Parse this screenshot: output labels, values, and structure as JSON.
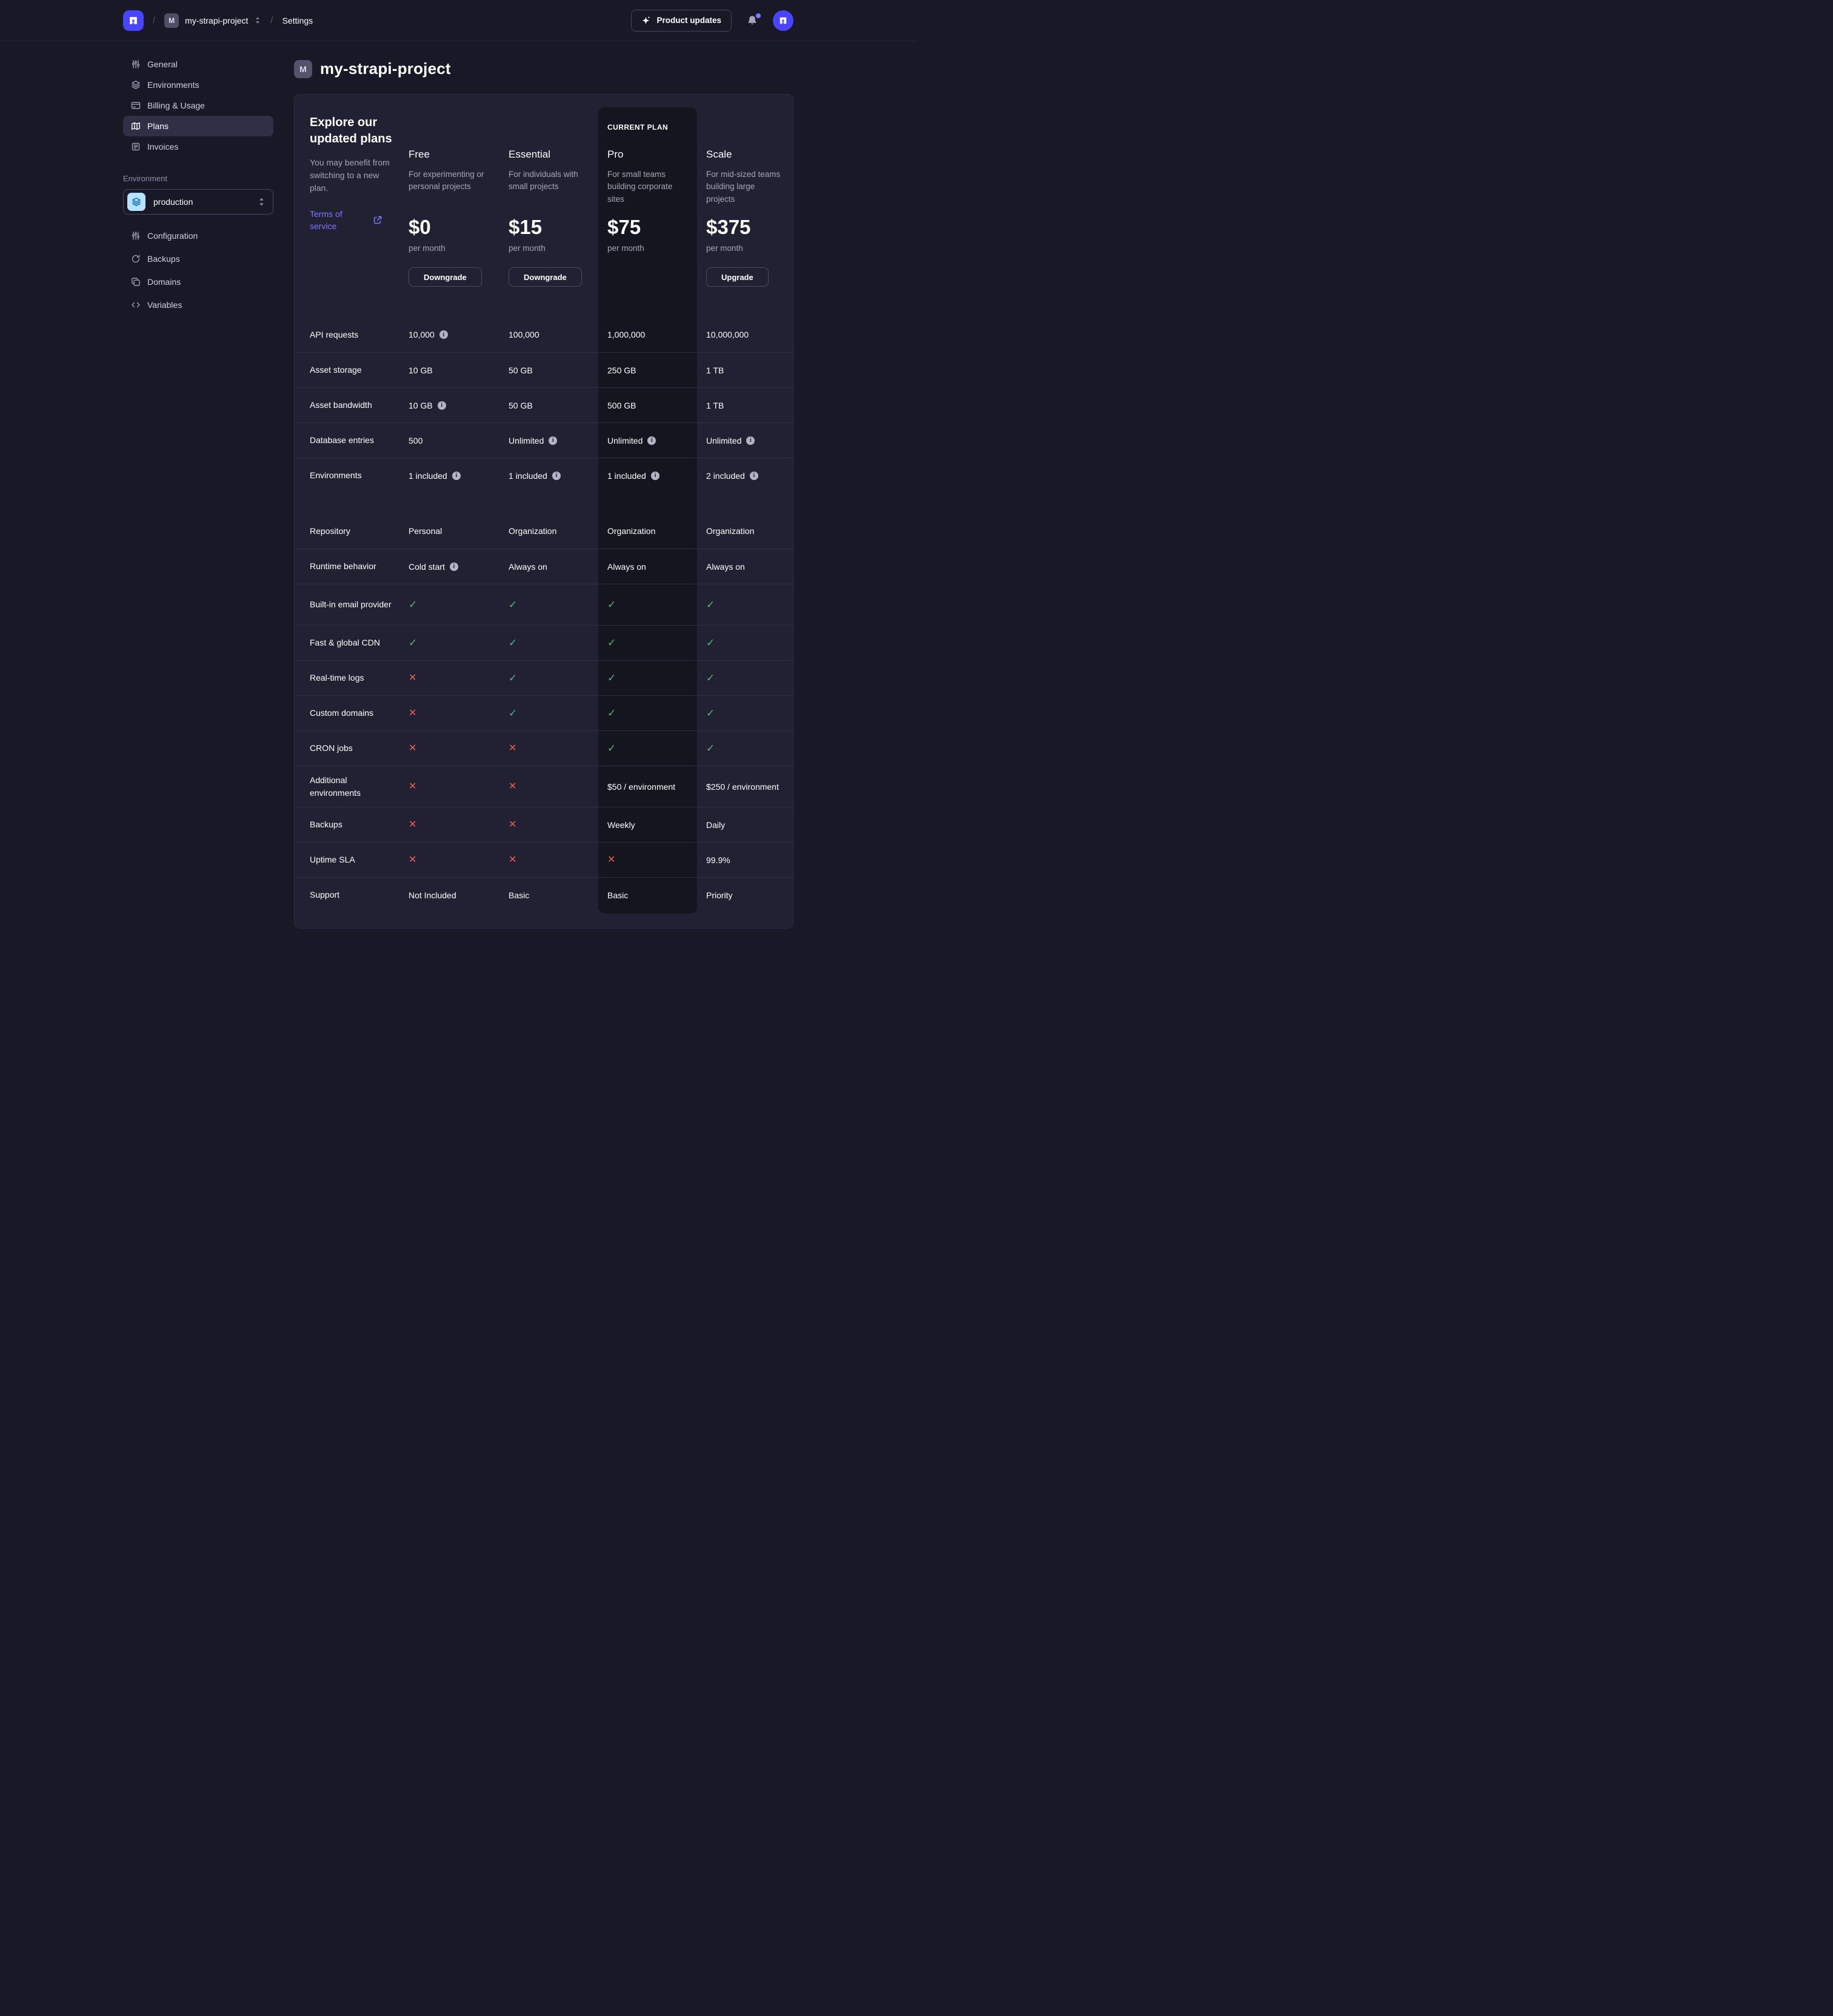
{
  "navbar": {
    "breadcrumb_separator": "/",
    "project_badge": "M",
    "project_name": "my-strapi-project",
    "section": "Settings",
    "product_updates_label": "Product updates",
    "icons": {
      "logo": "strapi-logo",
      "project_switcher": "sort-chevrons-icon",
      "updates": "sparkle-icon",
      "notifications": "bell-icon",
      "avatar": "strapi-avatar"
    }
  },
  "sidebar": {
    "items": [
      {
        "label": "General",
        "icon": "sliders-icon",
        "active": false
      },
      {
        "label": "Environments",
        "icon": "layers-icon",
        "active": false
      },
      {
        "label": "Billing & Usage",
        "icon": "credit-card-icon",
        "active": false
      },
      {
        "label": "Plans",
        "icon": "map-icon",
        "active": true
      },
      {
        "label": "Invoices",
        "icon": "invoice-icon",
        "active": false
      }
    ],
    "environment_section": {
      "label": "Environment",
      "selected_environment": "production",
      "select_icon": "layers-icon",
      "items": [
        {
          "label": "Configuration",
          "icon": "sliders-icon"
        },
        {
          "label": "Backups",
          "icon": "refresh-icon"
        },
        {
          "label": "Domains",
          "icon": "copy-icon"
        },
        {
          "label": "Variables",
          "icon": "code-icon"
        }
      ]
    }
  },
  "main": {
    "project_badge": "M",
    "title": "my-strapi-project"
  },
  "plans": {
    "intro": {
      "heading": "Explore our updated plans",
      "body": "You may benefit from switching to a new plan.",
      "link_label": "Terms of service",
      "link_icon": "external-link-icon"
    },
    "current_plan_label": "CURRENT PLAN",
    "columns": [
      {
        "name": "Free",
        "description": "For experimenting or personal projects",
        "price": "$0",
        "period": "per month",
        "action": "Downgrade",
        "current": false
      },
      {
        "name": "Essential",
        "description": "For individuals with small projects",
        "price": "$15",
        "period": "per month",
        "action": "Downgrade",
        "current": false
      },
      {
        "name": "Pro",
        "description": "For small teams building corporate sites",
        "price": "$75",
        "period": "per month",
        "action": null,
        "current": true
      },
      {
        "name": "Scale",
        "description": "For mid-sized teams building large projects",
        "price": "$375",
        "period": "per month",
        "action": "Upgrade",
        "current": false
      }
    ],
    "rows": [
      {
        "feature": "API requests",
        "values": [
          {
            "t": "10,000",
            "i": true
          },
          {
            "t": "100,000"
          },
          {
            "t": "1,000,000"
          },
          {
            "t": "10,000,000"
          }
        ]
      },
      {
        "feature": "Asset storage",
        "values": [
          {
            "t": "10 GB"
          },
          {
            "t": "50 GB"
          },
          {
            "t": "250 GB"
          },
          {
            "t": "1 TB"
          }
        ]
      },
      {
        "feature": "Asset bandwidth",
        "values": [
          {
            "t": "10 GB",
            "i": true
          },
          {
            "t": "50 GB"
          },
          {
            "t": "500 GB"
          },
          {
            "t": "1 TB"
          }
        ]
      },
      {
        "feature": "Database entries",
        "values": [
          {
            "t": "500"
          },
          {
            "t": "Unlimited",
            "i": true
          },
          {
            "t": "Unlimited",
            "i": true
          },
          {
            "t": "Unlimited",
            "i": true
          }
        ]
      },
      {
        "feature": "Environments",
        "values": [
          {
            "t": "1 included",
            "i": true
          },
          {
            "t": "1 included",
            "i": true
          },
          {
            "t": "1 included",
            "i": true
          },
          {
            "t": "2 included",
            "i": true
          }
        ],
        "gap_after": true
      },
      {
        "feature": "Repository",
        "values": [
          {
            "t": "Personal"
          },
          {
            "t": "Organization"
          },
          {
            "t": "Organization"
          },
          {
            "t": "Organization"
          }
        ],
        "no_top_border": true
      },
      {
        "feature": "Runtime behavior",
        "values": [
          {
            "t": "Cold start",
            "i": true
          },
          {
            "t": "Always on"
          },
          {
            "t": "Always on"
          },
          {
            "t": "Always on"
          }
        ]
      },
      {
        "feature": "Built-in email provider",
        "values": [
          {
            "c": "yes"
          },
          {
            "c": "yes"
          },
          {
            "c": "yes"
          },
          {
            "c": "yes"
          }
        ],
        "tall": true
      },
      {
        "feature": "Fast & global CDN",
        "values": [
          {
            "c": "yes"
          },
          {
            "c": "yes"
          },
          {
            "c": "yes"
          },
          {
            "c": "yes"
          }
        ]
      },
      {
        "feature": "Real-time logs",
        "values": [
          {
            "c": "no"
          },
          {
            "c": "yes"
          },
          {
            "c": "yes"
          },
          {
            "c": "yes"
          }
        ]
      },
      {
        "feature": "Custom domains",
        "values": [
          {
            "c": "no"
          },
          {
            "c": "yes"
          },
          {
            "c": "yes"
          },
          {
            "c": "yes"
          }
        ]
      },
      {
        "feature": "CRON jobs",
        "values": [
          {
            "c": "no"
          },
          {
            "c": "no"
          },
          {
            "c": "yes"
          },
          {
            "c": "yes"
          }
        ]
      },
      {
        "feature": "Additional environments",
        "values": [
          {
            "c": "no"
          },
          {
            "c": "no"
          },
          {
            "t": "$50 / environment"
          },
          {
            "t": "$250 / environment"
          }
        ],
        "tall": true
      },
      {
        "feature": "Backups",
        "values": [
          {
            "c": "no"
          },
          {
            "c": "no"
          },
          {
            "t": "Weekly"
          },
          {
            "t": "Daily"
          }
        ]
      },
      {
        "feature": "Uptime SLA",
        "values": [
          {
            "c": "no"
          },
          {
            "c": "no"
          },
          {
            "c": "no"
          },
          {
            "t": "99.9%"
          }
        ]
      },
      {
        "feature": "Support",
        "values": [
          {
            "t": "Not Included"
          },
          {
            "t": "Basic"
          },
          {
            "t": "Basic"
          },
          {
            "t": "Priority"
          }
        ]
      }
    ]
  },
  "colors": {
    "page_bg": "#181826",
    "card_bg": "#212133",
    "current_plan_column_bg": "#15151f",
    "accent": "#4945ff",
    "link": "#7b79ff",
    "success": "#57b877",
    "danger": "#ee5e52",
    "env_chip_bg": "#b8e1ff",
    "env_chip_icon": "#1577b5"
  }
}
